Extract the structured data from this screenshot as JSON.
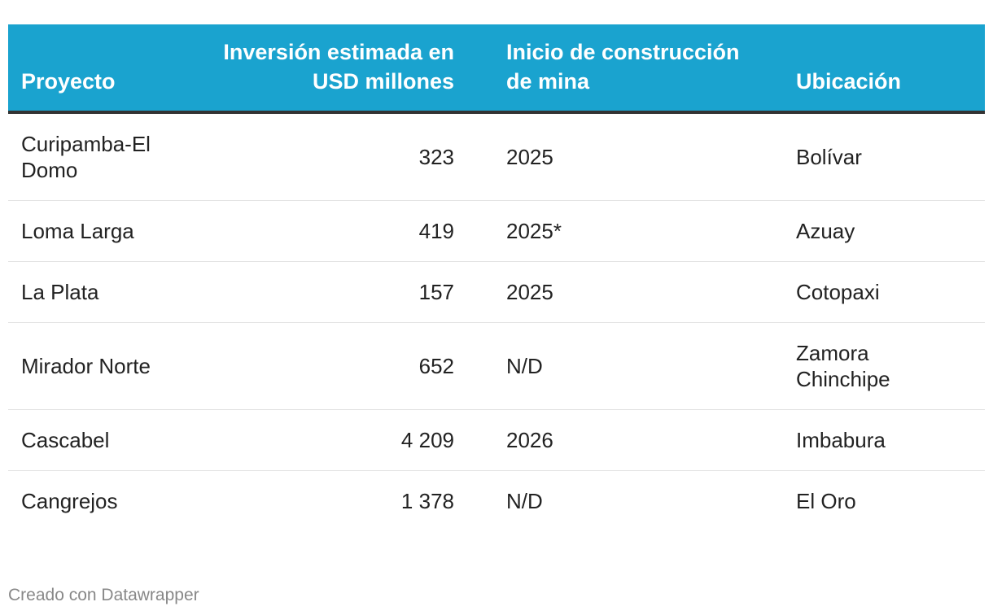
{
  "table": {
    "headers": {
      "project": "Proyecto",
      "investment": "Inversión estimada en USD millones",
      "construction_start": "Inicio de construcción de mina",
      "location": "Ubicación"
    },
    "rows": [
      {
        "project": "Curipamba-El Domo",
        "investment": "323",
        "construction_start": "2025",
        "location": "Bolívar"
      },
      {
        "project": "Loma Larga",
        "investment": "419",
        "construction_start": "2025*",
        "location": "Azuay"
      },
      {
        "project": "La Plata",
        "investment": "157",
        "construction_start": "2025",
        "location": "Cotopaxi"
      },
      {
        "project": "Mirador Norte",
        "investment": "652",
        "construction_start": "N/D",
        "location": "Zamora Chinchipe"
      },
      {
        "project": "Cascabel",
        "investment": "4 209",
        "construction_start": "2026",
        "location": "Imbabura"
      },
      {
        "project": "Cangrejos",
        "investment": "1 378",
        "construction_start": "N/D",
        "location": "El Oro"
      }
    ]
  },
  "footer": {
    "credit": "Creado con Datawrapper"
  },
  "colors": {
    "header_background": "#1aa3cf",
    "header_text": "#ffffff",
    "header_rule": "#333333",
    "row_divider": "#e3e3e3",
    "footer_text": "#888888"
  }
}
